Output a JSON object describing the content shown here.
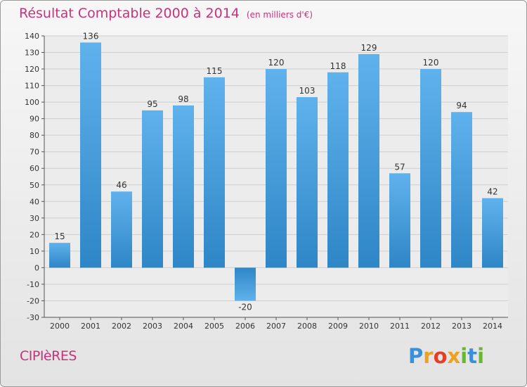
{
  "header": {
    "title": "Résultat Comptable 2000 à 2014",
    "subtitle": "(en milliers d'€)"
  },
  "footer": {
    "place": "CIPIèRES",
    "logo_letters": [
      {
        "char": "P",
        "color": "#3a8fd6"
      },
      {
        "char": "r",
        "color": "#f0a020"
      },
      {
        "char": "o",
        "color": "#e0402a"
      },
      {
        "char": "x",
        "color": "#f0a020"
      },
      {
        "char": "i",
        "color": "#6ab534"
      },
      {
        "char": "t",
        "color": "#3a8fd6"
      },
      {
        "char": "i",
        "color": "#6ab534"
      }
    ]
  },
  "colors": {
    "bar_light": "#5fb2ec",
    "bar_dark": "#2f86c6",
    "grid": "#cfcfcf",
    "axis": "#555555"
  },
  "chart_data": {
    "type": "bar",
    "title": "Résultat Comptable 2000 à 2014",
    "subtitle": "(en milliers d'€)",
    "categories": [
      "2000",
      "2001",
      "2002",
      "2003",
      "2004",
      "2005",
      "2006",
      "2007",
      "2008",
      "2009",
      "2010",
      "2011",
      "2012",
      "2013",
      "2014"
    ],
    "values": [
      15,
      136,
      46,
      95,
      98,
      115,
      -20,
      120,
      103,
      118,
      129,
      57,
      120,
      94,
      42
    ],
    "ylim": [
      -30,
      140
    ],
    "ytick_step": 10,
    "grid": true,
    "legend": false,
    "xlabel": "",
    "ylabel": ""
  }
}
